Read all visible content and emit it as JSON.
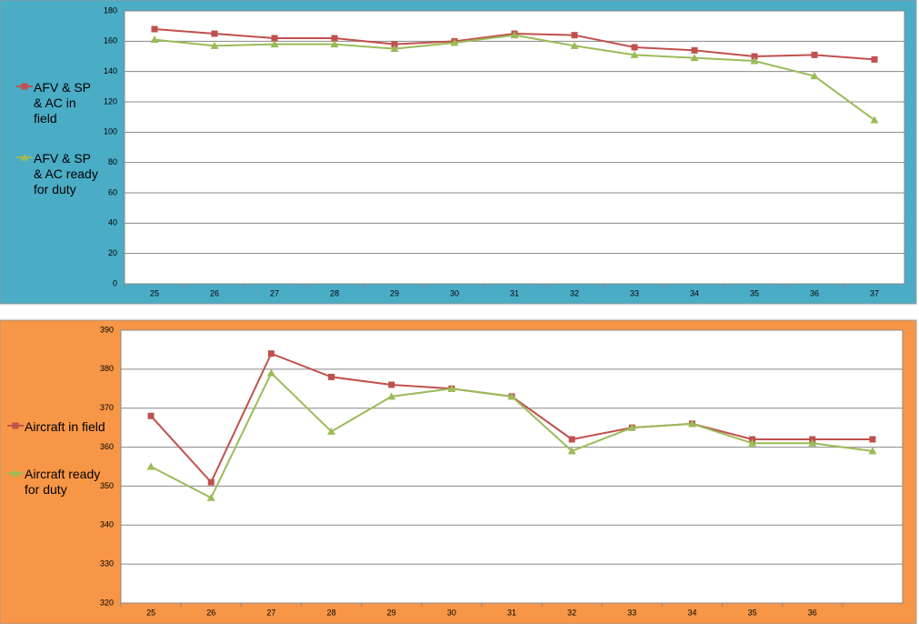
{
  "chart_data": [
    {
      "type": "line",
      "categories": [
        "25",
        "26",
        "27",
        "28",
        "29",
        "30",
        "31",
        "32",
        "33",
        "34",
        "35",
        "36",
        "37"
      ],
      "series": [
        {
          "name": "AFV & SP & AC in field",
          "color": "#c0504d",
          "marker": "square",
          "values": [
            168,
            165,
            162,
            162,
            158,
            160,
            165,
            164,
            156,
            154,
            150,
            151,
            148
          ]
        },
        {
          "name": "AFV & SP & AC ready for duty",
          "color": "#9bbb59",
          "marker": "triangle",
          "values": [
            161,
            157,
            158,
            158,
            155,
            159,
            164,
            157,
            151,
            149,
            147,
            137,
            108
          ]
        }
      ],
      "ylim": [
        0,
        180
      ],
      "yticks": [
        0,
        20,
        40,
        60,
        80,
        100,
        120,
        140,
        160,
        180
      ],
      "grid": true,
      "legend": "left",
      "background": "#4bacc6"
    },
    {
      "type": "line",
      "categories": [
        "25",
        "26",
        "27",
        "28",
        "29",
        "30",
        "31",
        "32",
        "33",
        "34",
        "35",
        "36",
        null
      ],
      "series": [
        {
          "name": "Aircraft in field",
          "color": "#c0504d",
          "marker": "square",
          "values": [
            368,
            351,
            384,
            378,
            376,
            375,
            373,
            362,
            365,
            366,
            362,
            362,
            362
          ]
        },
        {
          "name": "Aircraft ready for duty",
          "color": "#9bbb59",
          "marker": "triangle",
          "values": [
            355,
            347,
            379,
            364,
            373,
            375,
            373,
            359,
            365,
            366,
            361,
            361,
            359
          ]
        }
      ],
      "ylim": [
        320,
        390
      ],
      "yticks": [
        320,
        330,
        340,
        350,
        360,
        370,
        380,
        390
      ],
      "grid": true,
      "legend": "left",
      "background": "#f79646"
    }
  ]
}
